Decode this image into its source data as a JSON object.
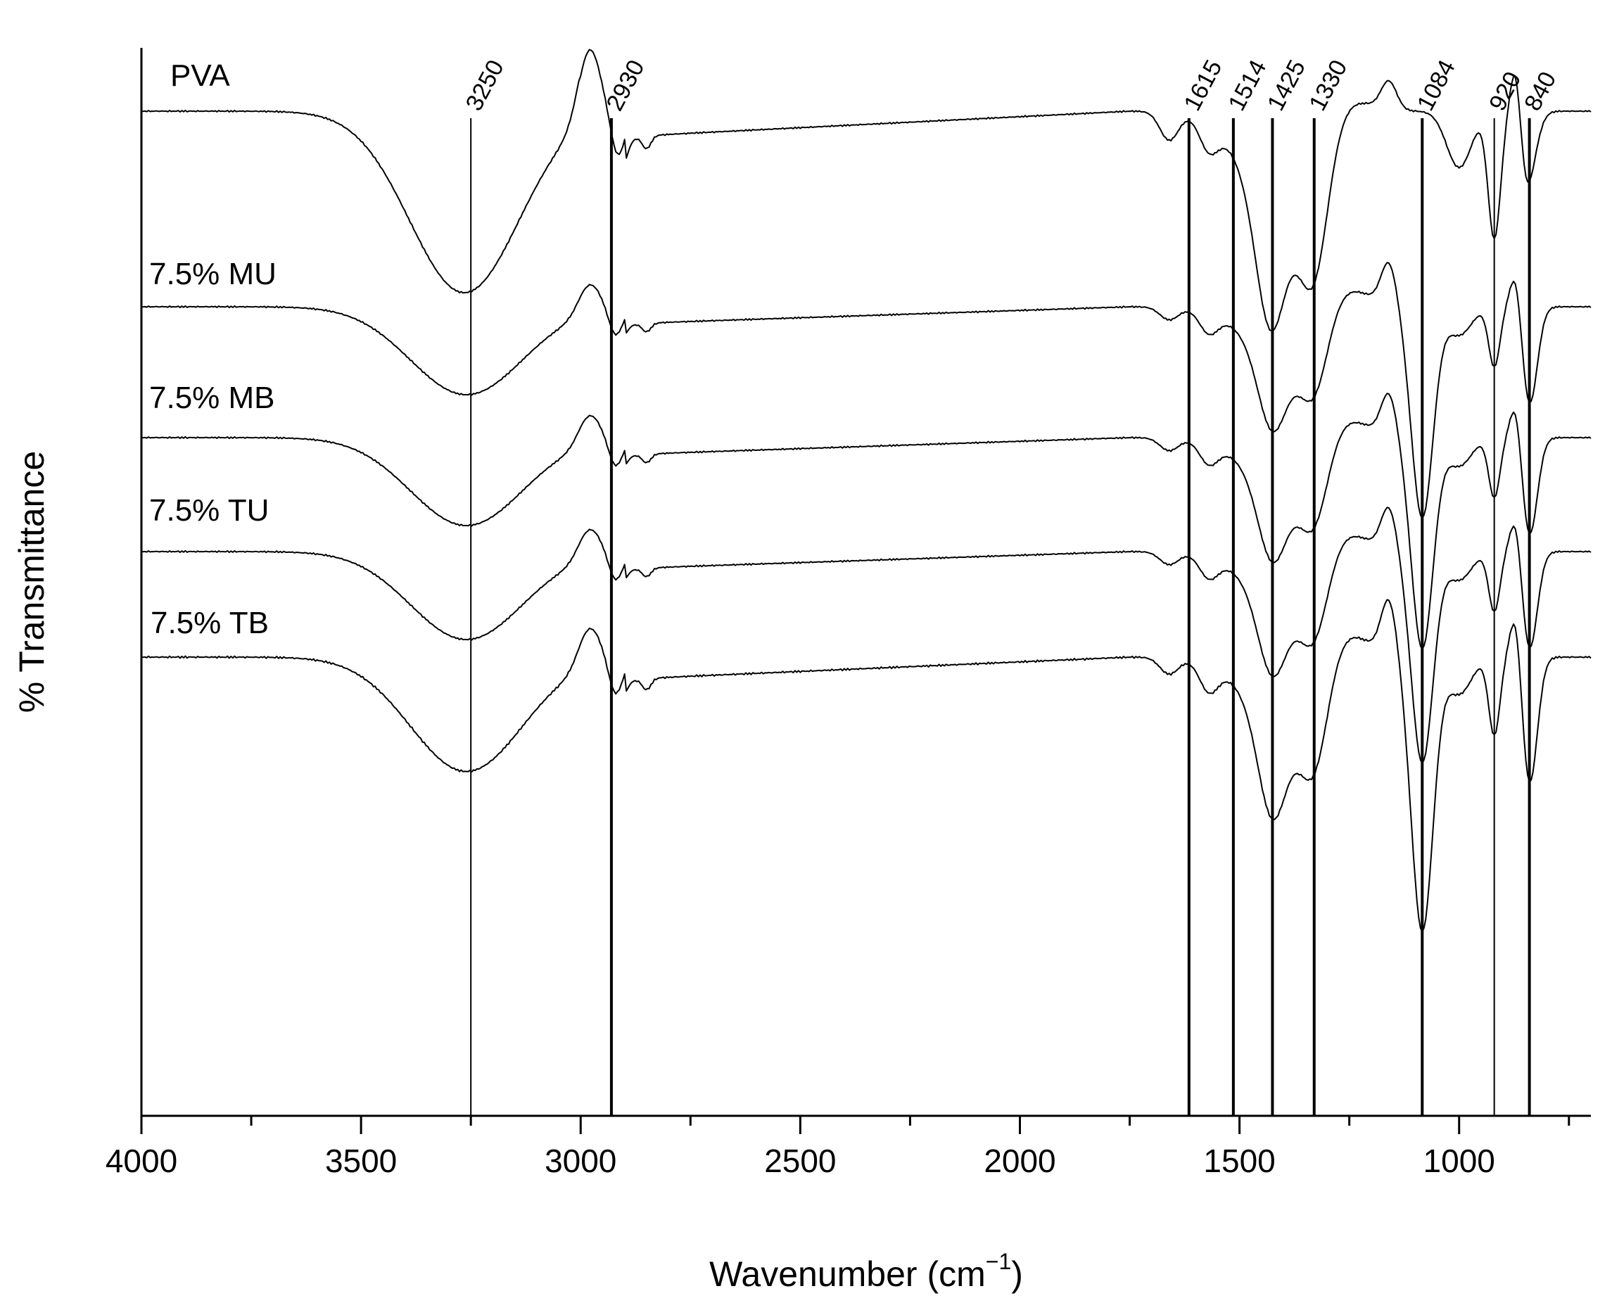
{
  "chart_data": {
    "type": "line",
    "xlabel": "Wavenumber (cm",
    "xlabel_sup": "−1",
    "xlabel_close": ")",
    "ylabel": "% Transmittance",
    "xlim": [
      4000,
      700
    ],
    "x_reversed": true,
    "x_ticks": [
      4000,
      3500,
      3000,
      2500,
      2000,
      1500,
      1000
    ],
    "x_tick_labels": [
      "4000",
      "3500",
      "3000",
      "2500",
      "2000",
      "1500",
      "1000"
    ],
    "y_ticks_shown": false,
    "grid": false,
    "legend": "inline labels at left",
    "reference_lines": [
      {
        "x": 3250,
        "label": "3250"
      },
      {
        "x": 2930,
        "label": "2930"
      },
      {
        "x": 1615,
        "label": "1615"
      },
      {
        "x": 1514,
        "label": "1514"
      },
      {
        "x": 1425,
        "label": "1425"
      },
      {
        "x": 1330,
        "label": "1330"
      },
      {
        "x": 1084,
        "label": "1084"
      },
      {
        "x": 920,
        "label": "920"
      },
      {
        "x": 840,
        "label": "840"
      }
    ],
    "series": [
      {
        "name": "PVA",
        "spectrum": "pva"
      },
      {
        "name": "7.5% MU",
        "spectrum": "composite"
      },
      {
        "name": "7.5% MB",
        "spectrum": "composite"
      },
      {
        "name": "7.5% TU",
        "spectrum": "composite"
      },
      {
        "name": "7.5% TB",
        "spectrum": "composite"
      }
    ]
  }
}
